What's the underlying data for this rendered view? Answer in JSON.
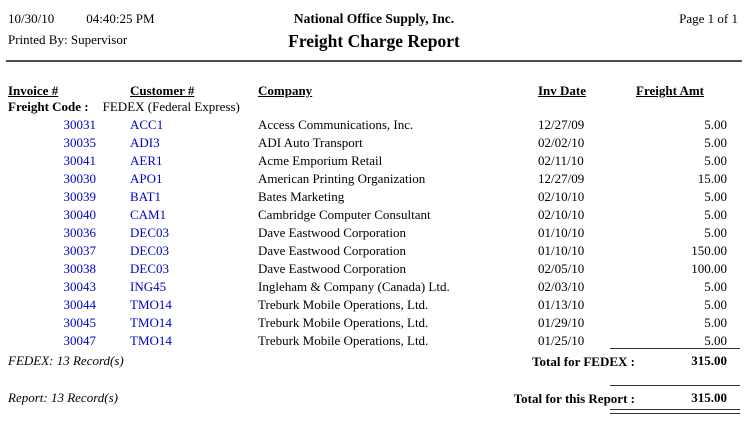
{
  "header": {
    "date": "10/30/10",
    "time": "04:40:25 PM",
    "printed_by": "Printed By: Supervisor",
    "company_name": "National Office Supply, Inc.",
    "report_title": "Freight Charge Report",
    "page_info": "Page 1 of 1"
  },
  "table": {
    "columns": {
      "invoice": "Invoice #",
      "customer": "Customer #",
      "company": "Company",
      "inv_date": "Inv Date",
      "freight_amt": "Freight Amt"
    },
    "group": {
      "label": "Freight Code :",
      "value": "FEDEX (Federal Express)"
    },
    "rows": [
      {
        "invoice": "30031",
        "customer": "ACC1",
        "company": "Access Communications, Inc.",
        "inv_date": "12/27/09",
        "freight_amt": "5.00"
      },
      {
        "invoice": "30035",
        "customer": "ADI3",
        "company": "ADI Auto Transport",
        "inv_date": "02/02/10",
        "freight_amt": "5.00"
      },
      {
        "invoice": "30041",
        "customer": "AER1",
        "company": "Acme Emporium Retail",
        "inv_date": "02/11/10",
        "freight_amt": "5.00"
      },
      {
        "invoice": "30030",
        "customer": "APO1",
        "company": "American Printing Organization",
        "inv_date": "12/27/09",
        "freight_amt": "15.00"
      },
      {
        "invoice": "30039",
        "customer": "BAT1",
        "company": "Bates Marketing",
        "inv_date": "02/10/10",
        "freight_amt": "5.00"
      },
      {
        "invoice": "30040",
        "customer": "CAM1",
        "company": "Cambridge Computer Consultant",
        "inv_date": "02/10/10",
        "freight_amt": "5.00"
      },
      {
        "invoice": "30036",
        "customer": "DEC03",
        "company": "Dave Eastwood Corporation",
        "inv_date": "01/10/10",
        "freight_amt": "5.00"
      },
      {
        "invoice": "30037",
        "customer": "DEC03",
        "company": "Dave Eastwood Corporation",
        "inv_date": "01/10/10",
        "freight_amt": "150.00"
      },
      {
        "invoice": "30038",
        "customer": "DEC03",
        "company": "Dave Eastwood Corporation",
        "inv_date": "02/05/10",
        "freight_amt": "100.00"
      },
      {
        "invoice": "30043",
        "customer": "ING45",
        "company": "Ingleham & Company (Canada) Ltd.",
        "inv_date": "02/03/10",
        "freight_amt": "5.00"
      },
      {
        "invoice": "30044",
        "customer": "TMO14",
        "company": "Treburk Mobile Operations, Ltd.",
        "inv_date": "01/13/10",
        "freight_amt": "5.00"
      },
      {
        "invoice": "30045",
        "customer": "TMO14",
        "company": "Treburk Mobile Operations, Ltd.",
        "inv_date": "01/29/10",
        "freight_amt": "5.00"
      },
      {
        "invoice": "30047",
        "customer": "TMO14",
        "company": "Treburk Mobile Operations, Ltd.",
        "inv_date": "01/25/10",
        "freight_amt": "5.00"
      }
    ]
  },
  "group_footer": {
    "record_count": "FEDEX: 13 Record(s)",
    "total_label": "Total for FEDEX :",
    "total_value": "315.00"
  },
  "report_footer": {
    "record_count": "Report: 13 Record(s)",
    "total_label": "Total for this Report :",
    "total_value": "315.00"
  },
  "colors": {
    "link_blue": "#0000cc",
    "rule_gray": "#4d4d4d"
  }
}
